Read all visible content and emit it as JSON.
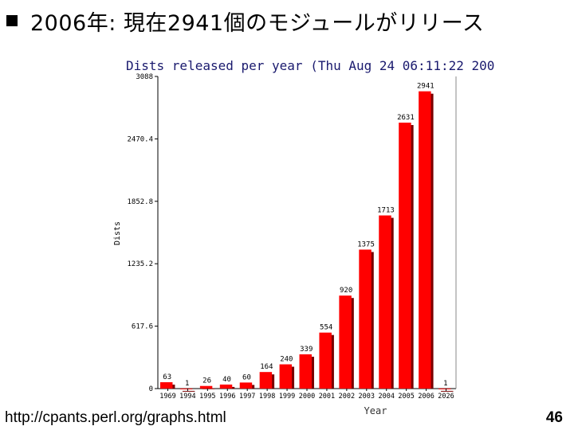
{
  "slide": {
    "title": "2006年: 現在2941個のモジュールがリリース",
    "footer_url": "http://cpants.perl.org/graphs.html",
    "page_number": "46"
  },
  "chart_data": {
    "type": "bar",
    "title": "Dists released per year (Thu Aug 24 06:11:22 200",
    "xlabel": "Year",
    "ylabel": "Dists",
    "ylim": [
      0,
      3088
    ],
    "yticks": [
      "0",
      "617.6",
      "1235.2",
      "1852.8",
      "2470.4",
      "3088"
    ],
    "categories": [
      "1969",
      "1994",
      "1995",
      "1996",
      "1997",
      "1998",
      "1999",
      "2000",
      "2001",
      "2002",
      "2003",
      "2004",
      "2005",
      "2006",
      "2026"
    ],
    "values": [
      63,
      1,
      26,
      40,
      60,
      164,
      240,
      339,
      554,
      920,
      1375,
      1713,
      2631,
      2941,
      1
    ],
    "colors": {
      "bar": "#ff0000",
      "shadow": "#7a0000",
      "axis": "#000000",
      "tick_text": "#000000",
      "title_text": "#1a1a6e"
    }
  }
}
